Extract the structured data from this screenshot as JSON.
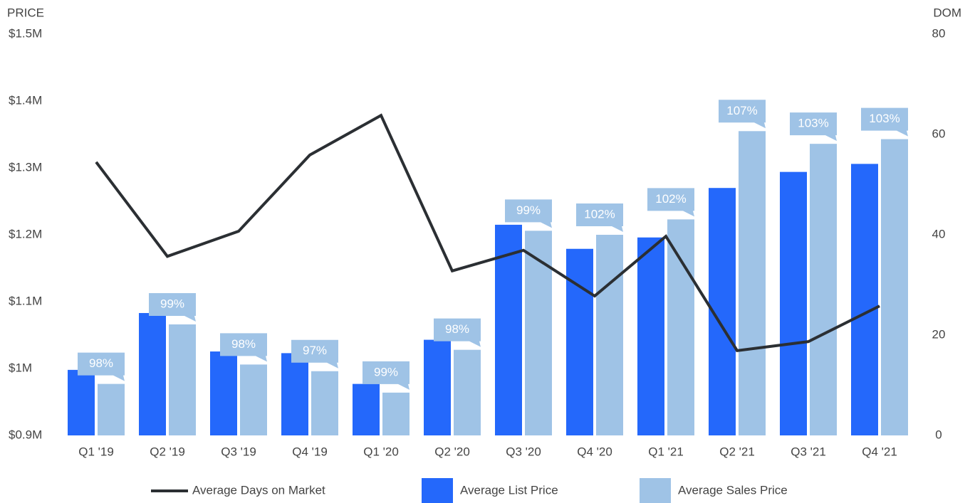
{
  "chart_data": {
    "type": "bar",
    "y_label": "PRICE",
    "y2_label": "DOM",
    "categories": [
      "Q1 '19",
      "Q2 '19",
      "Q3 '19",
      "Q4 '19",
      "Q1 '20",
      "Q2 '20",
      "Q3 '20",
      "Q4 '20",
      "Q1 '21",
      "Q2 '21",
      "Q3 '21",
      "Q4 '21"
    ],
    "series": [
      {
        "name": "Average Days on Market",
        "type": "line",
        "axis": "y2",
        "color": "#2b2f33",
        "values": [
          54.5,
          35.7,
          40.7,
          55.9,
          63.8,
          32.8,
          36.9,
          27.8,
          39.7,
          16.9,
          18.7,
          25.8
        ]
      },
      {
        "name": "Average List Price",
        "type": "bar",
        "color": "#2468fb",
        "values": [
          998000,
          1083000,
          1025500,
          1023000,
          977000,
          1043000,
          1215000,
          1179000,
          1196000,
          1270000,
          1294000,
          1306000
        ]
      },
      {
        "name": "Average Sales Price",
        "type": "bar",
        "color": "#9fc3e6",
        "values": [
          977000,
          1066000,
          1006000,
          996000,
          964000,
          1028000,
          1206000,
          1200000,
          1223000,
          1355000,
          1336000,
          1343000
        ]
      }
    ],
    "ratio": {
      "values": [
        98,
        99,
        98,
        97,
        99,
        98,
        99,
        102,
        102,
        107,
        103,
        103
      ],
      "value_labels": [
        "98%",
        "99%",
        "98%",
        "97%",
        "99%",
        "98%",
        "99%",
        "102%",
        "102%",
        "107%",
        "103%",
        "103%"
      ],
      "color": "#9fc3e6"
    },
    "ylim": [
      900000,
      1500000
    ],
    "yticks": [
      {
        "value": 900000,
        "label": "$0.9M"
      },
      {
        "value": 1000000,
        "label": "$1M"
      },
      {
        "value": 1100000,
        "label": "$1.1M"
      },
      {
        "value": 1200000,
        "label": "$1.2M"
      },
      {
        "value": 1300000,
        "label": "$1.3M"
      },
      {
        "value": 1400000,
        "label": "$1.4M"
      },
      {
        "value": 1500000,
        "label": "$1.5M"
      }
    ],
    "y2lim": [
      0,
      80
    ],
    "y2ticks": [
      0,
      20,
      40,
      60,
      80
    ],
    "legend": "bottom"
  }
}
